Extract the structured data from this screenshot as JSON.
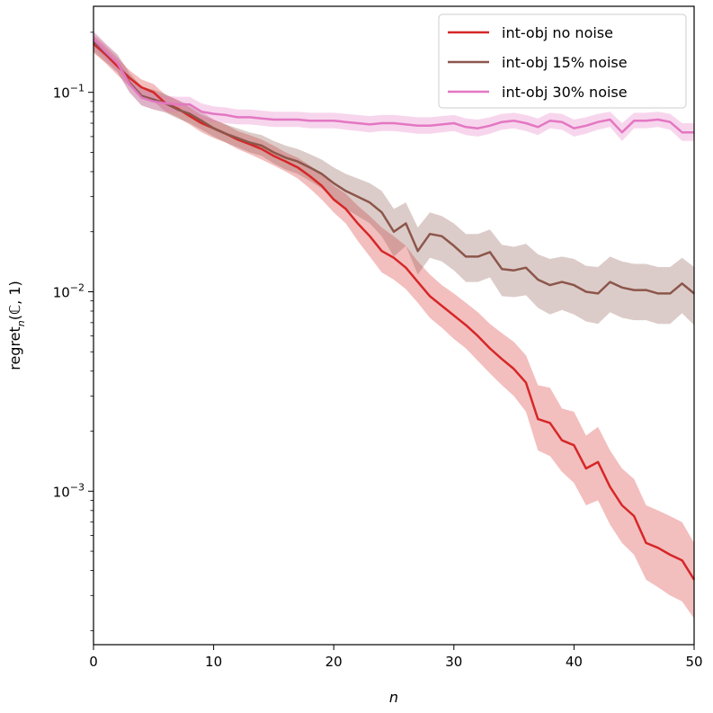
{
  "chart_data": {
    "type": "line",
    "title": "",
    "xlabel": "n",
    "ylabel": {
      "main": "regret",
      "sub": "n",
      "args": "(ℂ, 1)"
    },
    "yscale": "log",
    "xlim": [
      0,
      50
    ],
    "ylim": [
      0.00017,
      0.27
    ],
    "x_ticks": [
      0,
      10,
      20,
      30,
      40,
      50
    ],
    "y_ticks": [
      {
        "value": 0.1,
        "base": "10",
        "exp": "−1"
      },
      {
        "value": 0.01,
        "base": "10",
        "exp": "−2"
      },
      {
        "value": 0.001,
        "base": "10",
        "exp": "−3"
      }
    ],
    "legend_position": "top-right",
    "x": [
      0,
      1,
      2,
      3,
      4,
      5,
      6,
      7,
      8,
      9,
      10,
      11,
      12,
      13,
      14,
      15,
      16,
      17,
      18,
      19,
      20,
      21,
      22,
      23,
      24,
      25,
      26,
      27,
      28,
      29,
      30,
      31,
      32,
      33,
      34,
      35,
      36,
      37,
      38,
      39,
      40,
      41,
      42,
      43,
      44,
      45,
      46,
      47,
      48,
      49,
      50
    ],
    "series": [
      {
        "name": "int-obj no noise",
        "color": "#d62728",
        "values": [
          0.175,
          0.155,
          0.135,
          0.118,
          0.106,
          0.1,
          0.088,
          0.083,
          0.076,
          0.07,
          0.066,
          0.062,
          0.058,
          0.055,
          0.052,
          0.048,
          0.045,
          0.042,
          0.038,
          0.034,
          0.029,
          0.026,
          0.022,
          0.019,
          0.016,
          0.0148,
          0.0132,
          0.0112,
          0.0095,
          0.0085,
          0.0076,
          0.0068,
          0.006,
          0.0052,
          0.0046,
          0.0041,
          0.0035,
          0.0023,
          0.0022,
          0.0018,
          0.0017,
          0.0013,
          0.0014,
          0.00105,
          0.00085,
          0.00075,
          0.00055,
          0.00052,
          0.00048,
          0.00045,
          0.00036
        ],
        "lower": [
          0.158,
          0.14,
          0.122,
          0.107,
          0.096,
          0.09,
          0.08,
          0.075,
          0.069,
          0.063,
          0.059,
          0.056,
          0.052,
          0.049,
          0.046,
          0.043,
          0.04,
          0.037,
          0.033,
          0.029,
          0.025,
          0.022,
          0.018,
          0.015,
          0.0125,
          0.0115,
          0.0103,
          0.0088,
          0.0074,
          0.0066,
          0.0058,
          0.0052,
          0.0045,
          0.0039,
          0.0034,
          0.003,
          0.0025,
          0.0016,
          0.0015,
          0.00125,
          0.0011,
          0.00085,
          0.0009,
          0.00068,
          0.00055,
          0.00048,
          0.00036,
          0.00033,
          0.0003,
          0.00028,
          0.00023
        ],
        "upper": [
          0.193,
          0.17,
          0.149,
          0.129,
          0.116,
          0.11,
          0.097,
          0.092,
          0.084,
          0.077,
          0.073,
          0.069,
          0.064,
          0.061,
          0.058,
          0.054,
          0.05,
          0.047,
          0.043,
          0.039,
          0.034,
          0.031,
          0.027,
          0.024,
          0.021,
          0.019,
          0.017,
          0.0142,
          0.0122,
          0.0108,
          0.0098,
          0.0088,
          0.0079,
          0.0069,
          0.0062,
          0.0056,
          0.0048,
          0.0034,
          0.0033,
          0.0026,
          0.0025,
          0.0019,
          0.0021,
          0.0016,
          0.0013,
          0.00115,
          0.00085,
          0.0008,
          0.00075,
          0.0007,
          0.00055
        ]
      },
      {
        "name": "int-obj 15% noise",
        "color": "#8c564b",
        "values": [
          0.18,
          0.158,
          0.14,
          0.112,
          0.096,
          0.092,
          0.088,
          0.082,
          0.078,
          0.072,
          0.066,
          0.062,
          0.059,
          0.056,
          0.054,
          0.05,
          0.047,
          0.045,
          0.042,
          0.039,
          0.035,
          0.032,
          0.03,
          0.028,
          0.025,
          0.02,
          0.022,
          0.016,
          0.0195,
          0.019,
          0.017,
          0.015,
          0.015,
          0.0158,
          0.013,
          0.0128,
          0.0132,
          0.0115,
          0.0108,
          0.0112,
          0.0108,
          0.01,
          0.0098,
          0.0112,
          0.0105,
          0.0102,
          0.0102,
          0.0098,
          0.0098,
          0.011,
          0.0098
        ],
        "lower": [
          0.16,
          0.142,
          0.126,
          0.1,
          0.086,
          0.082,
          0.079,
          0.074,
          0.07,
          0.065,
          0.06,
          0.056,
          0.053,
          0.05,
          0.048,
          0.044,
          0.041,
          0.039,
          0.036,
          0.033,
          0.029,
          0.026,
          0.024,
          0.022,
          0.019,
          0.015,
          0.017,
          0.0122,
          0.0148,
          0.0142,
          0.0128,
          0.0112,
          0.0112,
          0.0118,
          0.0095,
          0.0094,
          0.0096,
          0.0083,
          0.0077,
          0.0081,
          0.0077,
          0.0071,
          0.0069,
          0.0079,
          0.0074,
          0.0072,
          0.0072,
          0.0069,
          0.0069,
          0.0078,
          0.0068
        ],
        "upper": [
          0.2,
          0.175,
          0.155,
          0.125,
          0.107,
          0.103,
          0.098,
          0.091,
          0.087,
          0.08,
          0.073,
          0.069,
          0.066,
          0.063,
          0.061,
          0.057,
          0.054,
          0.052,
          0.049,
          0.046,
          0.042,
          0.039,
          0.037,
          0.035,
          0.032,
          0.026,
          0.028,
          0.021,
          0.025,
          0.024,
          0.022,
          0.0195,
          0.0195,
          0.0205,
          0.0172,
          0.0168,
          0.0174,
          0.0154,
          0.0146,
          0.015,
          0.0146,
          0.0135,
          0.0133,
          0.015,
          0.0142,
          0.0138,
          0.0138,
          0.0133,
          0.0133,
          0.0148,
          0.0133
        ]
      },
      {
        "name": "int-obj 30% noise",
        "color": "#e377c2",
        "values": [
          0.185,
          0.16,
          0.14,
          0.11,
          0.094,
          0.09,
          0.088,
          0.087,
          0.087,
          0.08,
          0.078,
          0.077,
          0.075,
          0.075,
          0.074,
          0.073,
          0.073,
          0.073,
          0.072,
          0.072,
          0.072,
          0.071,
          0.07,
          0.069,
          0.07,
          0.07,
          0.069,
          0.068,
          0.068,
          0.069,
          0.07,
          0.067,
          0.066,
          0.068,
          0.071,
          0.072,
          0.07,
          0.067,
          0.072,
          0.071,
          0.066,
          0.068,
          0.071,
          0.073,
          0.063,
          0.072,
          0.072,
          0.073,
          0.071,
          0.063,
          0.063
        ],
        "lower": [
          0.168,
          0.146,
          0.127,
          0.1,
          0.086,
          0.082,
          0.08,
          0.079,
          0.079,
          0.073,
          0.071,
          0.07,
          0.069,
          0.069,
          0.068,
          0.067,
          0.067,
          0.067,
          0.066,
          0.066,
          0.066,
          0.065,
          0.064,
          0.063,
          0.064,
          0.064,
          0.063,
          0.062,
          0.062,
          0.063,
          0.064,
          0.061,
          0.06,
          0.062,
          0.065,
          0.066,
          0.064,
          0.061,
          0.066,
          0.065,
          0.06,
          0.062,
          0.065,
          0.067,
          0.057,
          0.066,
          0.066,
          0.067,
          0.065,
          0.057,
          0.057
        ],
        "upper": [
          0.203,
          0.176,
          0.153,
          0.121,
          0.103,
          0.099,
          0.096,
          0.095,
          0.095,
          0.088,
          0.085,
          0.084,
          0.082,
          0.082,
          0.081,
          0.08,
          0.08,
          0.08,
          0.079,
          0.079,
          0.079,
          0.078,
          0.077,
          0.076,
          0.077,
          0.077,
          0.076,
          0.075,
          0.075,
          0.076,
          0.077,
          0.074,
          0.073,
          0.075,
          0.078,
          0.079,
          0.077,
          0.074,
          0.079,
          0.078,
          0.073,
          0.075,
          0.078,
          0.08,
          0.07,
          0.079,
          0.079,
          0.08,
          0.078,
          0.07,
          0.07
        ]
      }
    ]
  }
}
